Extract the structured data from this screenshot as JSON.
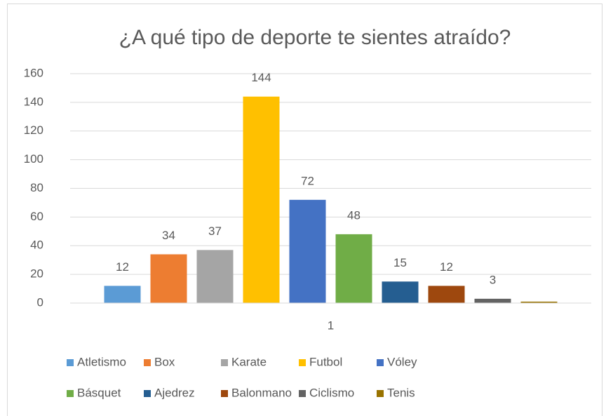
{
  "chart_data": {
    "type": "bar",
    "title": "¿A qué tipo de deporte te sientes atraído?",
    "categories": [
      "1"
    ],
    "series": [
      {
        "name": "Atletismo",
        "color": "#5B9BD5",
        "values": [
          12
        ]
      },
      {
        "name": "Box",
        "color": "#ED7D31",
        "values": [
          34
        ]
      },
      {
        "name": "Karate",
        "color": "#A5A5A5",
        "values": [
          37
        ]
      },
      {
        "name": "Futbol",
        "color": "#FFC000",
        "values": [
          144
        ]
      },
      {
        "name": "Vóley",
        "color": "#4472C4",
        "values": [
          72
        ]
      },
      {
        "name": "Básquet",
        "color": "#70AD47",
        "values": [
          48
        ]
      },
      {
        "name": "Ajedrez",
        "color": "#255E91",
        "values": [
          15
        ]
      },
      {
        "name": "Balonmano",
        "color": "#9E480E",
        "values": [
          12
        ]
      },
      {
        "name": "Ciclismo",
        "color": "#636363",
        "values": [
          3
        ]
      },
      {
        "name": "Tenis",
        "color": "#997300",
        "values": [
          1
        ],
        "value_labels": [
          null
        ]
      }
    ],
    "ylim": [
      0,
      160
    ],
    "yticks": [
      0,
      20,
      40,
      60,
      80,
      100,
      120,
      140,
      160
    ],
    "grid": true,
    "legend": "bottom"
  }
}
